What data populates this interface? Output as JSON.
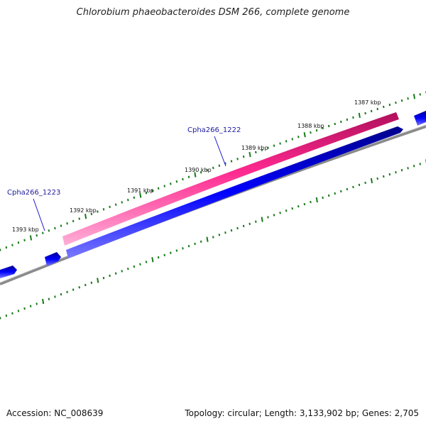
{
  "title": "Chlorobium phaeobacteroides DSM 266, complete genome",
  "accession": "Accession: NC_008639",
  "stats": "Topology: circular; Length: 3,133,902 bp; Genes: 2,705",
  "scale_labels": [
    "1387 kbp",
    "1388 kbp",
    "1389 kbp",
    "1390 kbp",
    "1391 kbp",
    "1392 kbp",
    "1393 kbp"
  ],
  "gene_labels": [
    "Cpha266_1222",
    "Cpha266_1223"
  ],
  "colors": {
    "forward_gene": "#ff1f8f",
    "reverse_gene": "#0000ee",
    "backbone": "#808080",
    "tick": "#1a7a1a",
    "label_line": "#1a1ad0"
  }
}
